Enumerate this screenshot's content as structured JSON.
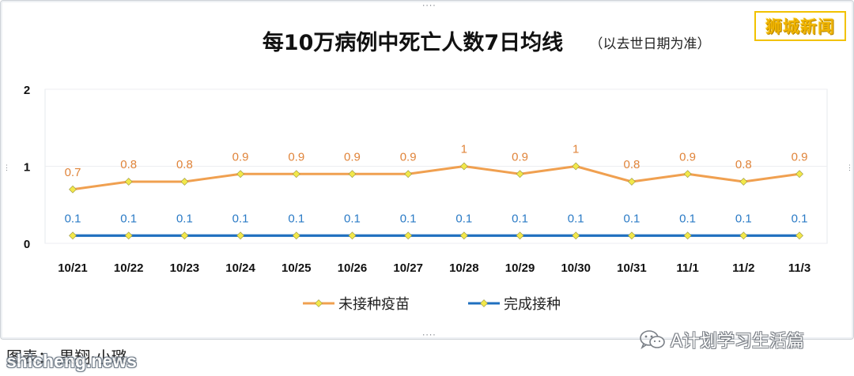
{
  "brand": {
    "name": "狮城新闻",
    "color": "#f0b400"
  },
  "caption": {
    "text": "图表： 黒翔·小璐",
    "site": "shicheng.news"
  },
  "wechat": {
    "account": "A计划学习生活篇",
    "icon": "wechat-icon"
  },
  "chart_data": {
    "type": "line",
    "title": "每10万病例中死亡人数7日均线",
    "subtitle": "（以去世日期为准）",
    "xlabel": "",
    "ylabel": "",
    "ylim": [
      0,
      2
    ],
    "yticks": [
      "0",
      "1",
      "2"
    ],
    "grid": true,
    "legend_position": "bottom-center",
    "categories": [
      "10/21",
      "10/22",
      "10/23",
      "10/24",
      "10/25",
      "10/26",
      "10/27",
      "10/28",
      "10/29",
      "10/30",
      "10/31",
      "11/1",
      "11/2",
      "11/3"
    ],
    "series": [
      {
        "name": "未接种疫苗",
        "color": "#f0a050",
        "label_color": "#e0843a",
        "values": [
          0.7,
          0.8,
          0.8,
          0.9,
          0.9,
          0.9,
          0.9,
          1,
          0.9,
          1,
          0.8,
          0.9,
          0.8,
          0.9
        ],
        "labels": [
          "0.7",
          "0.8",
          "0.8",
          "0.9",
          "0.9",
          "0.9",
          "0.9",
          "1",
          "0.9",
          "1",
          "0.8",
          "0.9",
          "0.8",
          "0.9"
        ]
      },
      {
        "name": "完成接种",
        "color": "#1f6fbf",
        "label_color": "#2b7bc6",
        "values": [
          0.1,
          0.1,
          0.1,
          0.1,
          0.1,
          0.1,
          0.1,
          0.1,
          0.1,
          0.1,
          0.1,
          0.1,
          0.1,
          0.1
        ],
        "labels": [
          "0.1",
          "0.1",
          "0.1",
          "0.1",
          "0.1",
          "0.1",
          "0.1",
          "0.1",
          "0.1",
          "0.1",
          "0.1",
          "0.1",
          "0.1",
          "0.1"
        ]
      }
    ],
    "marker_color": "#f2e84a"
  }
}
